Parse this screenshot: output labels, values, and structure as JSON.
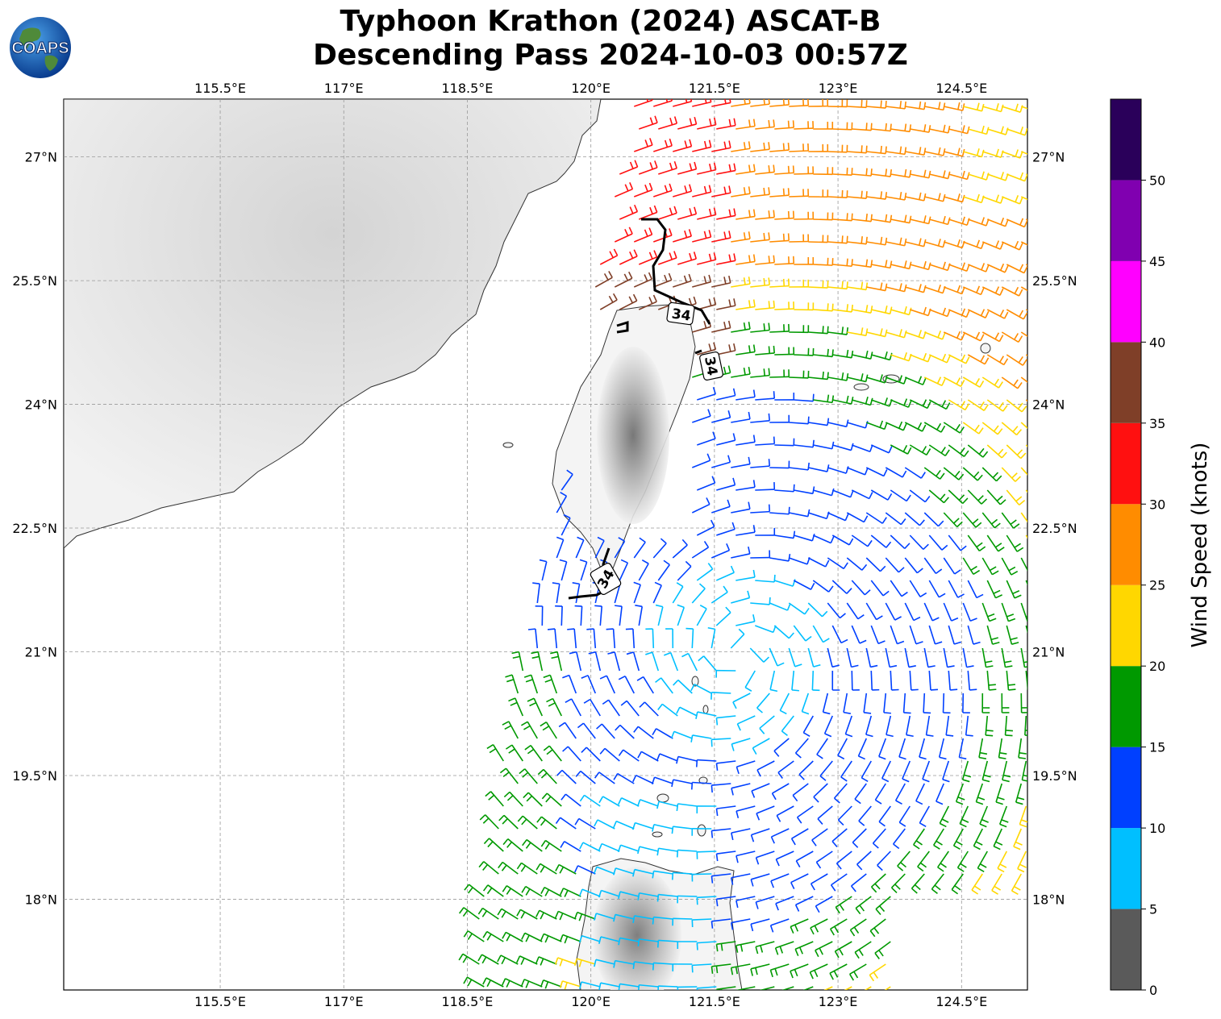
{
  "title": {
    "line1": "Typhoon Krathon (2024) ASCAT-B",
    "line2": "Descending Pass 2024-10-03 00:57Z"
  },
  "logo": {
    "text": "COAPS",
    "icon": "globe-logo-icon"
  },
  "map": {
    "lon_range": [
      113.6,
      125.3
    ],
    "lat_range": [
      16.9,
      27.7
    ],
    "lon_ticks": [
      "115.5°E",
      "117°E",
      "118.5°E",
      "120°E",
      "121.5°E",
      "123°E",
      "124.5°E"
    ],
    "lon_tick_values": [
      115.5,
      117,
      118.5,
      120,
      121.5,
      123,
      124.5
    ],
    "lat_ticks": [
      "27°N",
      "25.5°N",
      "24°N",
      "22.5°N",
      "21°N",
      "19.5°N",
      "18°N"
    ],
    "lat_tick_values": [
      27,
      25.5,
      24,
      22.5,
      21,
      19.5,
      18
    ],
    "gridlines": true,
    "contour_labels": [
      "34",
      "34",
      "34"
    ]
  },
  "colorbar": {
    "label": "Wind Speed (knots)",
    "ticks": [
      "0",
      "5",
      "10",
      "15",
      "20",
      "25",
      "30",
      "35",
      "40",
      "45",
      "50"
    ],
    "bins": [
      {
        "from": 0,
        "to": 5,
        "color": "#5a5a5a"
      },
      {
        "from": 5,
        "to": 10,
        "color": "#00bfff"
      },
      {
        "from": 10,
        "to": 15,
        "color": "#0040ff"
      },
      {
        "from": 15,
        "to": 20,
        "color": "#009900"
      },
      {
        "from": 20,
        "to": 25,
        "color": "#ffd700"
      },
      {
        "from": 25,
        "to": 30,
        "color": "#ff8c00"
      },
      {
        "from": 30,
        "to": 35,
        "color": "#ff1010"
      },
      {
        "from": 35,
        "to": 40,
        "color": "#7f3f28"
      },
      {
        "from": 40,
        "to": 45,
        "color": "#ff00ff"
      },
      {
        "from": 45,
        "to": 50,
        "color": "#8000b0"
      },
      {
        "from": 50,
        "to": 55,
        "color": "#2a005a"
      }
    ]
  }
}
